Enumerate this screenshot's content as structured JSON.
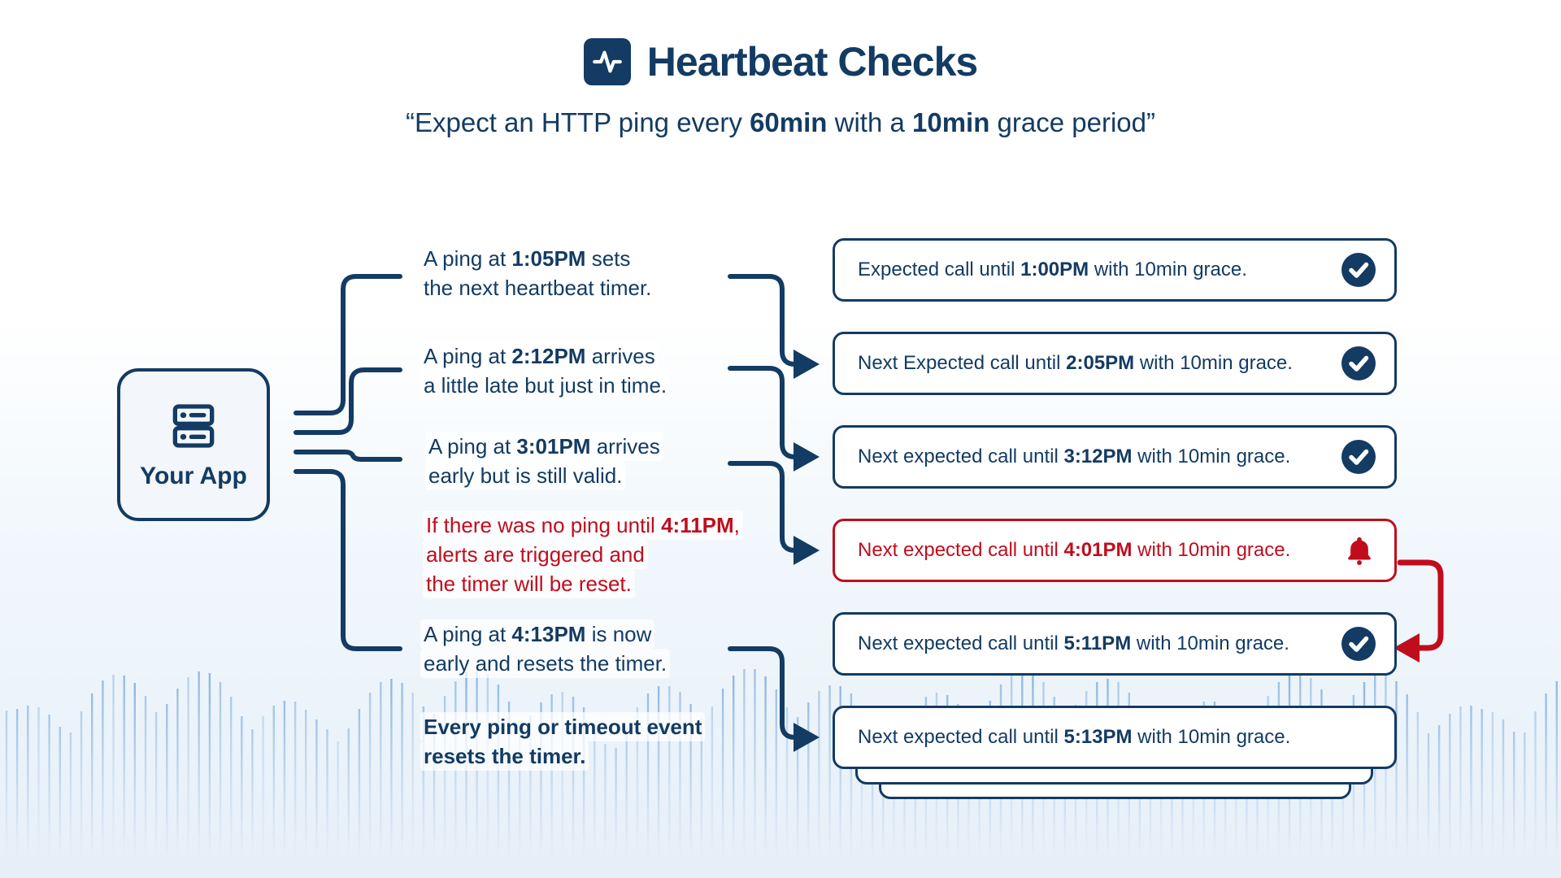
{
  "colors": {
    "navy": "#133b63",
    "red": "#c00d1d",
    "wave": "#6fa3d8"
  },
  "header": {
    "title": "Heartbeat Checks",
    "icon": "activity-icon"
  },
  "subtitle": {
    "segments": [
      {
        "t": "“Expect an HTTP ping every "
      },
      {
        "t": "60min",
        "b": true
      },
      {
        "t": " with a "
      },
      {
        "t": "10min",
        "b": true
      },
      {
        "t": " grace period”"
      }
    ]
  },
  "app": {
    "label": "Your App",
    "icon": "server-icon"
  },
  "steps": [
    {
      "variant": "normal",
      "segments": [
        {
          "t": "A ping at "
        },
        {
          "t": "1:05PM",
          "b": true
        },
        {
          "t": " sets"
        },
        {
          "br": true
        },
        {
          "t": "the next heartbeat timer."
        }
      ]
    },
    {
      "variant": "normal",
      "segments": [
        {
          "t": "A ping at "
        },
        {
          "t": "2:12PM",
          "b": true
        },
        {
          "t": " arrives"
        },
        {
          "br": true
        },
        {
          "t": "a little late but just in time."
        }
      ]
    },
    {
      "variant": "normal",
      "segments": [
        {
          "t": "A ping at "
        },
        {
          "t": "3:01PM",
          "b": true
        },
        {
          "t": " arrives"
        },
        {
          "br": true
        },
        {
          "t": "early but is still valid."
        }
      ]
    },
    {
      "variant": "alert",
      "segments": [
        {
          "t": "If there was no ping until "
        },
        {
          "t": "4:11PM",
          "b": true
        },
        {
          "t": ","
        },
        {
          "br": true
        },
        {
          "t": "alerts are triggered and"
        },
        {
          "br": true
        },
        {
          "t": "the timer will be reset."
        }
      ]
    },
    {
      "variant": "normal",
      "segments": [
        {
          "t": "A ping at "
        },
        {
          "t": "4:13PM",
          "b": true
        },
        {
          "t": " is now"
        },
        {
          "br": true
        },
        {
          "t": "early and resets the timer."
        }
      ]
    },
    {
      "variant": "emphasis",
      "segments": [
        {
          "t": "Every ping or timeout event",
          "b": true
        },
        {
          "br": true
        },
        {
          "t": "resets the timer.",
          "b": true
        }
      ]
    }
  ],
  "results": [
    {
      "icon": "check",
      "variant": "ok",
      "segments": [
        {
          "t": "Expected call until "
        },
        {
          "t": "1:00PM",
          "b": true
        },
        {
          "t": " with 10min grace."
        }
      ]
    },
    {
      "icon": "check",
      "variant": "ok",
      "segments": [
        {
          "t": "Next Expected call until "
        },
        {
          "t": "2:05PM",
          "b": true
        },
        {
          "t": " with 10min grace."
        }
      ]
    },
    {
      "icon": "check",
      "variant": "ok",
      "segments": [
        {
          "t": "Next expected call until "
        },
        {
          "t": "3:12PM",
          "b": true
        },
        {
          "t": " with 10min grace."
        }
      ]
    },
    {
      "icon": "bell",
      "variant": "alert",
      "segments": [
        {
          "t": "Next expected call until "
        },
        {
          "t": "4:01PM",
          "b": true
        },
        {
          "t": " with 10min grace."
        }
      ]
    },
    {
      "icon": "check",
      "variant": "ok",
      "segments": [
        {
          "t": "Next expected call until "
        },
        {
          "t": "5:11PM",
          "b": true
        },
        {
          "t": " with 10min grace."
        }
      ]
    },
    {
      "icon": "none",
      "variant": "plain",
      "segments": [
        {
          "t": "Next expected call until "
        },
        {
          "t": "5:13PM",
          "b": true
        },
        {
          "t": " with 10min grace."
        }
      ]
    }
  ]
}
